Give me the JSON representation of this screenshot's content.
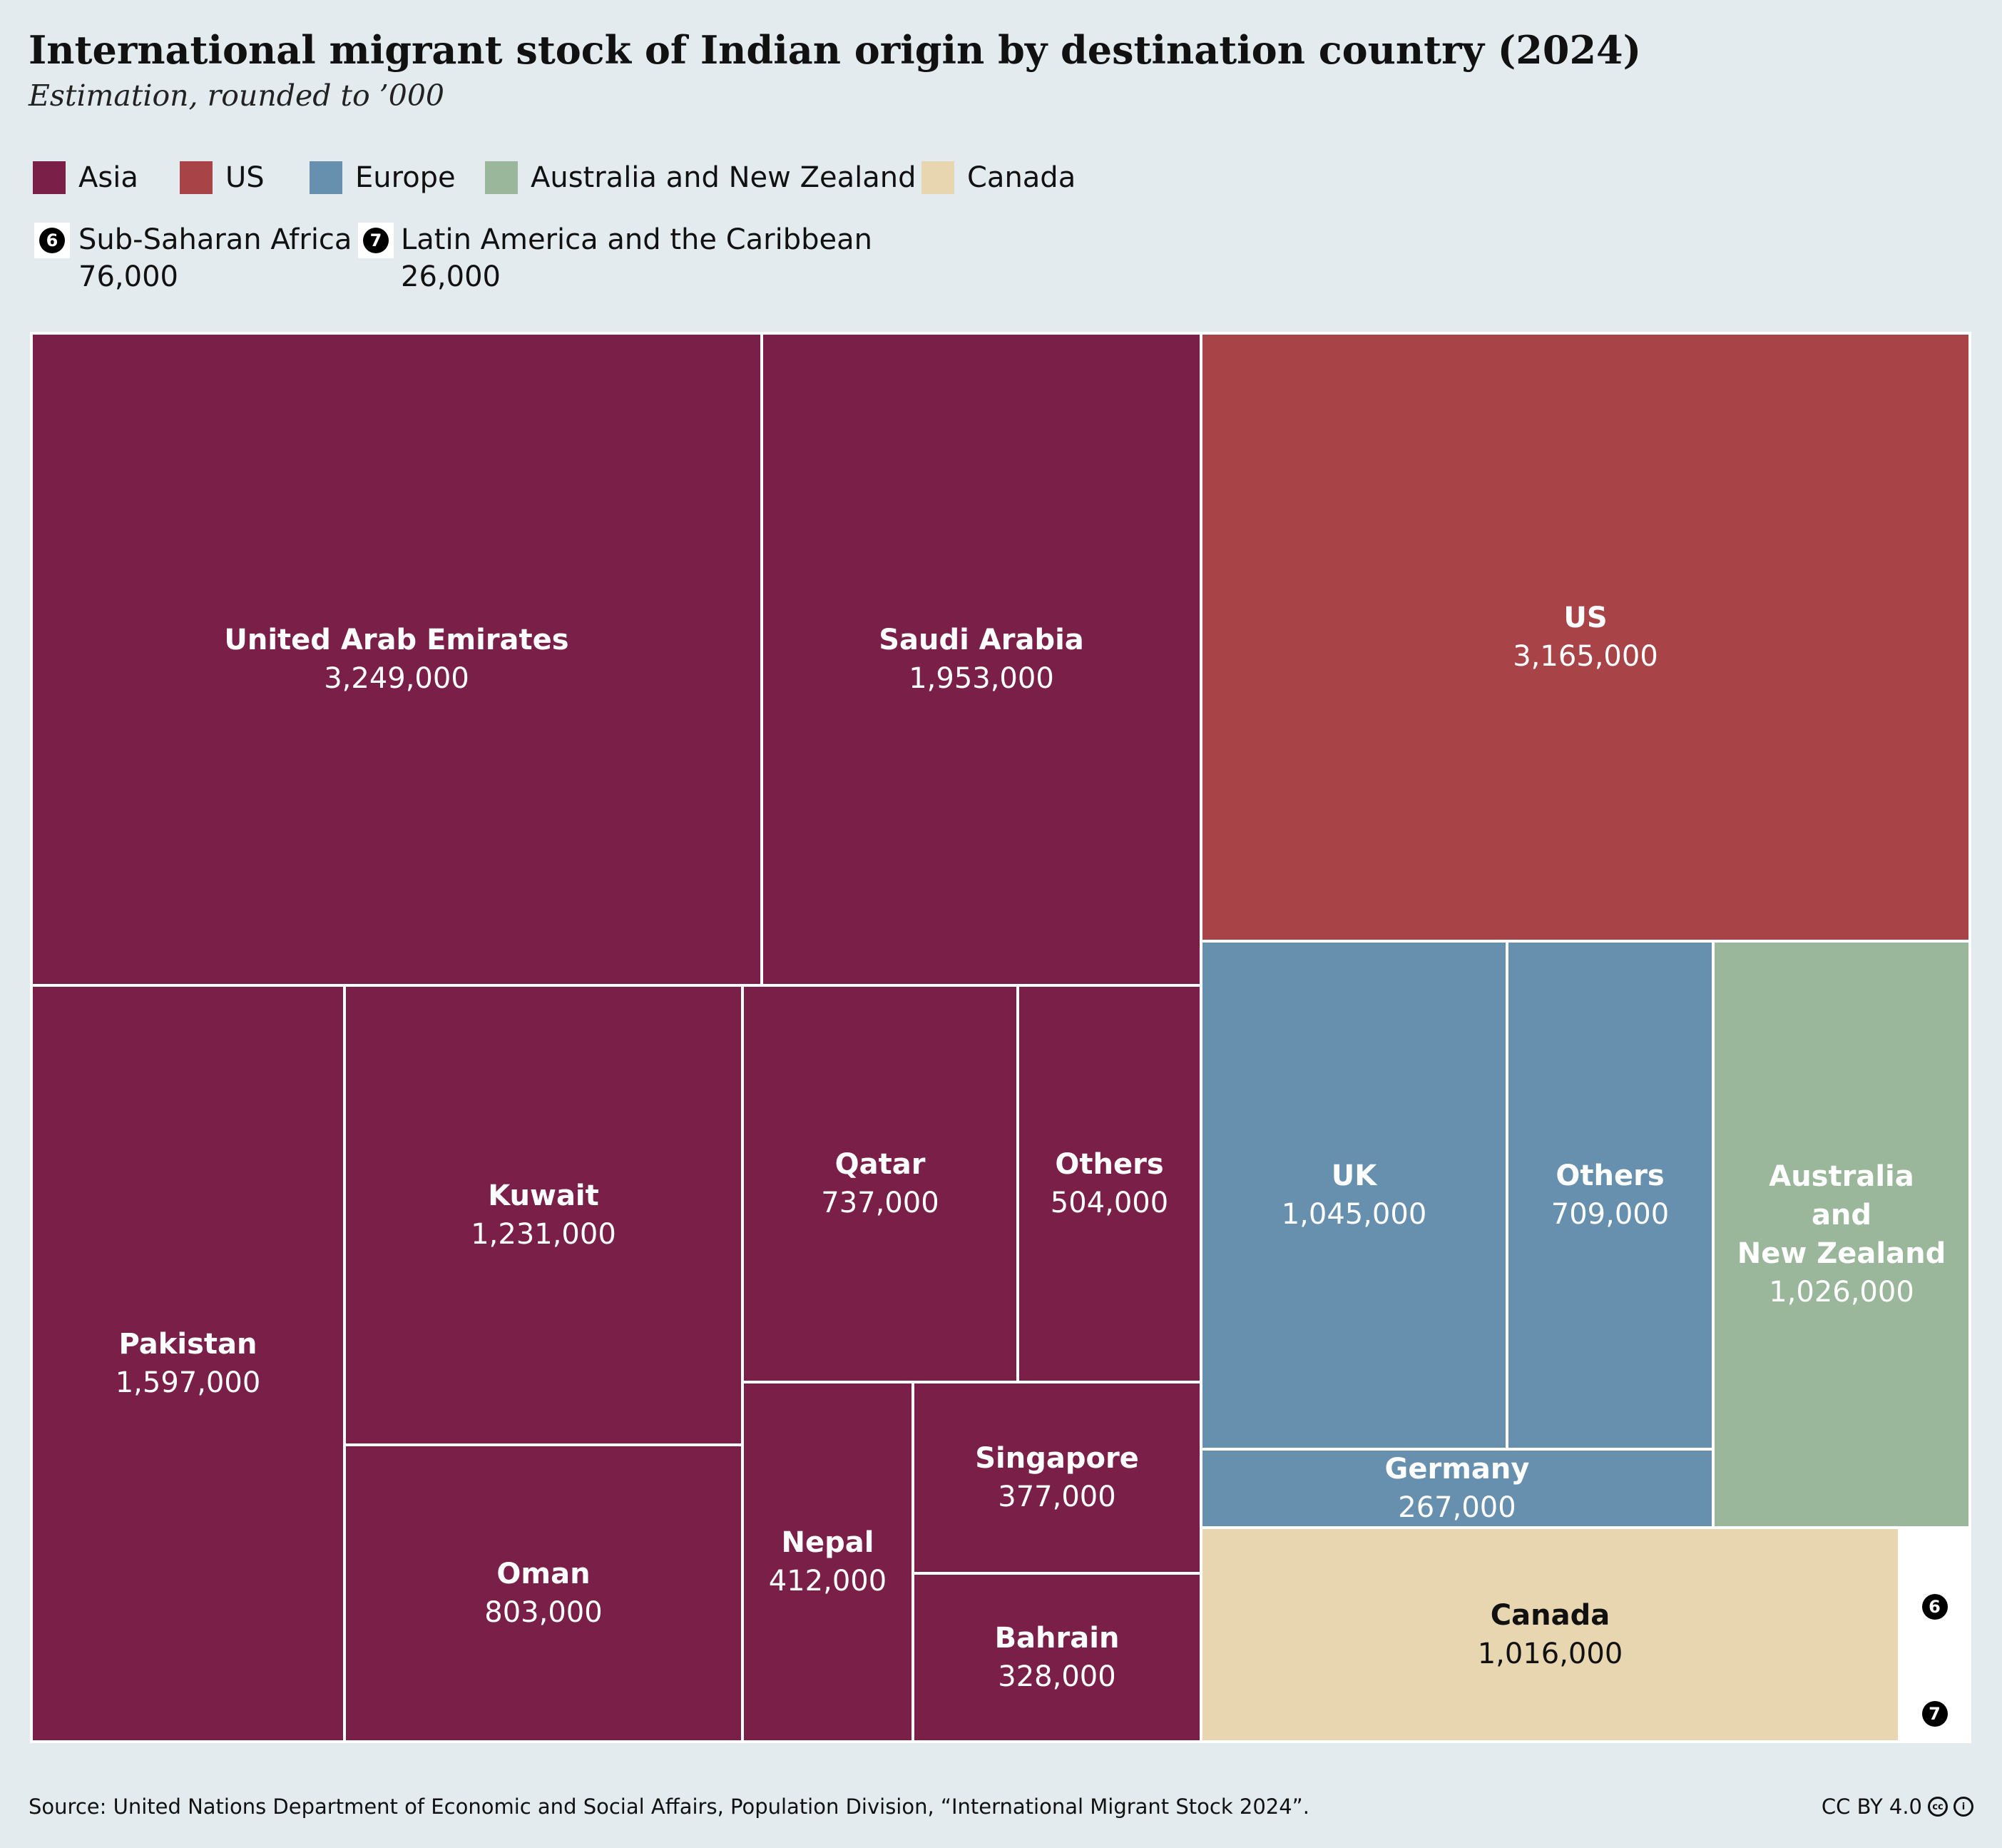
{
  "title": "International migrant stock of Indian origin by destination country (2024)",
  "subtitle": "Estimation, rounded to ’000",
  "colors": {
    "asia": "#7a2048",
    "us": "#a84448",
    "europe": "#678fae",
    "anz": "#9ab79b",
    "canada": "#e8d6b0",
    "small": "#ffffff",
    "background": "#e3ebee"
  },
  "legend": {
    "items": [
      "Asia",
      "US",
      "Europe",
      "Australia and New Zealand",
      "Canada"
    ],
    "notes": [
      {
        "badge": "6",
        "label": "Sub-Saharan Africa",
        "value": "76,000"
      },
      {
        "badge": "7",
        "label": "Latin America and the Caribbean",
        "value": "26,000"
      }
    ]
  },
  "chart_data": {
    "type": "treemap",
    "groups": [
      {
        "name": "Asia",
        "items": [
          {
            "name": "United Arab Emirates",
            "value": 3249000,
            "label": "3,249,000"
          },
          {
            "name": "Saudi Arabia",
            "value": 1953000,
            "label": "1,953,000"
          },
          {
            "name": "Pakistan",
            "value": 1597000,
            "label": "1,597,000"
          },
          {
            "name": "Kuwait",
            "value": 1231000,
            "label": "1,231,000"
          },
          {
            "name": "Oman",
            "value": 803000,
            "label": "803,000"
          },
          {
            "name": "Qatar",
            "value": 737000,
            "label": "737,000"
          },
          {
            "name": "Others",
            "value": 504000,
            "label": "504,000"
          },
          {
            "name": "Nepal",
            "value": 412000,
            "label": "412,000"
          },
          {
            "name": "Singapore",
            "value": 377000,
            "label": "377,000"
          },
          {
            "name": "Bahrain",
            "value": 328000,
            "label": "328,000"
          }
        ]
      },
      {
        "name": "US",
        "items": [
          {
            "name": "US",
            "value": 3165000,
            "label": "3,165,000"
          }
        ]
      },
      {
        "name": "Europe",
        "items": [
          {
            "name": "UK",
            "value": 1045000,
            "label": "1,045,000"
          },
          {
            "name": "Others",
            "value": 709000,
            "label": "709,000"
          },
          {
            "name": "Germany",
            "value": 267000,
            "label": "267,000"
          }
        ]
      },
      {
        "name": "Australia and New Zealand",
        "items": [
          {
            "name": "Australia\nand\nNew Zealand",
            "value": 1026000,
            "label": "1,026,000"
          }
        ]
      },
      {
        "name": "Canada",
        "items": [
          {
            "name": "Canada",
            "value": 1016000,
            "label": "1,016,000"
          }
        ]
      },
      {
        "name": "Sub-Saharan Africa",
        "items": [
          {
            "name": "6",
            "value": 76000,
            "label": ""
          }
        ]
      },
      {
        "name": "Latin America and the Caribbean",
        "items": [
          {
            "name": "7",
            "value": 26000,
            "label": ""
          }
        ]
      }
    ]
  },
  "footer": {
    "source": "Source: United Nations Department of Economic and Social Affairs, Population Division, “International Migrant Stock 2024”.",
    "license": "CC BY 4.0"
  }
}
